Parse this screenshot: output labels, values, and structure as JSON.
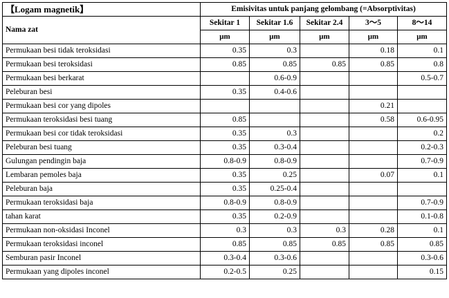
{
  "table": {
    "title": "【Logam magnetik】",
    "name_header": "Nama zat",
    "group_header": "Emisivitas untuk panjang gelombang (=Absorptivitas)",
    "columns": [
      "Sekitar 1",
      "Sekitar 1.6",
      "Sekitar 2.4",
      "3～5",
      "8～14"
    ],
    "unit": "μm",
    "rows": [
      {
        "name": "Permukaan besi tidak teroksidasi",
        "values": [
          "0.35",
          "0.3",
          "",
          "0.18",
          "0.1"
        ]
      },
      {
        "name": "Permukaan besi teroksidasi",
        "values": [
          "0.85",
          "0.85",
          "0.85",
          "0.85",
          "0.8"
        ]
      },
      {
        "name": "Permukaan besi berkarat",
        "values": [
          "",
          "0.6-0.9",
          "",
          "",
          "0.5-0.7"
        ]
      },
      {
        "name": "Peleburan besi",
        "values": [
          "0.35",
          "0.4-0.6",
          "",
          "",
          ""
        ]
      },
      {
        "name": "Permukaan besi cor yang dipoles",
        "values": [
          "",
          "",
          "",
          "0.21",
          ""
        ]
      },
      {
        "name": "Permukaan teroksidasi besi tuang",
        "values": [
          "0.85",
          "",
          "",
          "0.58",
          "0.6-0.95"
        ]
      },
      {
        "name": "Permukaan besi cor tidak teroksidasi",
        "values": [
          "0.35",
          "0.3",
          "",
          "",
          "0.2"
        ]
      },
      {
        "name": "Peleburan besi tuang",
        "values": [
          "0.35",
          "0.3-0.4",
          "",
          "",
          "0.2-0.3"
        ]
      },
      {
        "name": "Gulungan pendingin baja",
        "values": [
          "0.8-0.9",
          "0.8-0.9",
          "",
          "",
          "0.7-0.9"
        ]
      },
      {
        "name": "Lembaran pemoles baja",
        "values": [
          "0.35",
          "0.25",
          "",
          "0.07",
          "0.1"
        ]
      },
      {
        "name": "Peleburan baja",
        "values": [
          "0.35",
          "0.25-0.4",
          "",
          "",
          ""
        ]
      },
      {
        "name": "Permukaan teroksidasi baja",
        "values": [
          "0.8-0.9",
          "0.8-0.9",
          "",
          "",
          "0.7-0.9"
        ]
      },
      {
        "name": "tahan karat",
        "values": [
          "0.35",
          "0.2-0.9",
          "",
          "",
          "0.1-0.8"
        ]
      },
      {
        "name": "Permukaan non-oksidasi Inconel",
        "values": [
          "0.3",
          "0.3",
          "0.3",
          "0.28",
          "0.1"
        ]
      },
      {
        "name": "Permukaan teroksidasi inconel",
        "values": [
          "0.85",
          "0.85",
          "0.85",
          "0.85",
          "0.85"
        ]
      },
      {
        "name": "Semburan pasir Inconel",
        "values": [
          "0.3-0.4",
          "0.3-0.6",
          "",
          "",
          "0.3-0.6"
        ]
      },
      {
        "name": "Permukaan yang dipoles inconel",
        "values": [
          "0.2-0.5",
          "0.25",
          "",
          "",
          "0.15"
        ]
      }
    ]
  }
}
